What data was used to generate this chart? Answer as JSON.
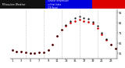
{
  "bg_color": "#ffffff",
  "plot_bg": "#ffffff",
  "grid_color": "#888888",
  "dot_color": "#cc0000",
  "black_dot_color": "#000000",
  "header_blue": "#0000dd",
  "header_red": "#dd0000",
  "x_hours": [
    1,
    2,
    3,
    4,
    5,
    6,
    7,
    8,
    9,
    10,
    11,
    12,
    13,
    14,
    15,
    16,
    17,
    18,
    19,
    20,
    21,
    22,
    23,
    24
  ],
  "temp_data": [
    54,
    53,
    53,
    52,
    51,
    51,
    52,
    52,
    54,
    60,
    68,
    74,
    78,
    81,
    83,
    84,
    83,
    82,
    80,
    76,
    70,
    64,
    60,
    56
  ],
  "heat_data": [
    54,
    53,
    53,
    52,
    51,
    51,
    52,
    52,
    54,
    60,
    68,
    74,
    79,
    83,
    86,
    87,
    86,
    85,
    82,
    78,
    71,
    65,
    60,
    56
  ],
  "ylim_min": 46,
  "ylim_max": 94,
  "y_ticks": [
    51,
    61,
    71,
    81,
    91
  ],
  "grid_x_positions": [
    4,
    8,
    12,
    16,
    20,
    24
  ],
  "x_tick_step": 2,
  "title_text_left": "Milwaukee Weather",
  "title_text_right": "Outdoor Temperature\nvs Heat Index\n(24 Hours)"
}
